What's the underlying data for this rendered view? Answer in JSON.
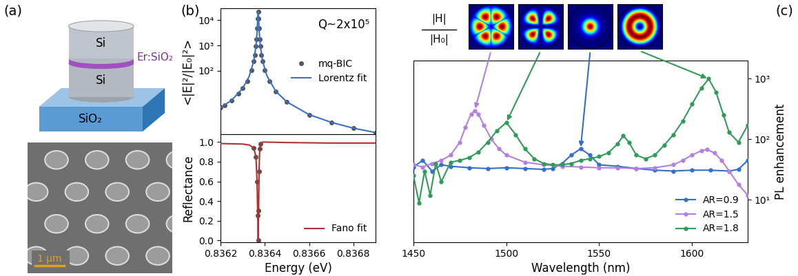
{
  "panel_labels": [
    "(a)",
    "(b)",
    "(c)"
  ],
  "schematic": {
    "top_layer": "Si",
    "interlayer": "Er:SiO₂",
    "bottom_layer": "Si",
    "substrate": "SiO₂"
  },
  "sem": {
    "scale_bar": "1 μm"
  },
  "chart_data": [
    {
      "type": "scatter",
      "ylabel": "<|E|²/|E₀|²>",
      "annotation": "Q~2x10⁵",
      "log": "y",
      "xlim": [
        0.8362,
        0.8369
      ],
      "ylim": [
        0.3,
        30000
      ],
      "xticks": [
        0.8362,
        0.8364,
        0.8366,
        0.8368
      ],
      "yticks": [
        {
          "value": 100,
          "label": "10²"
        },
        {
          "value": 1000,
          "label": "10³"
        },
        {
          "value": 10000,
          "label": "10⁴"
        }
      ],
      "tick_labels": "y",
      "legend": "center right",
      "series": [
        {
          "name": "mq-BIC",
          "type": "scatter",
          "marker": "circle",
          "color": "#555555",
          "x": [
            0.8362,
            0.83622,
            0.83625,
            0.83628,
            0.8363,
            0.83632,
            0.83634,
            0.83635,
            0.836355,
            0.83636,
            0.836363,
            0.836366,
            0.836368,
            0.83637,
            0.836372,
            0.836374,
            0.836377,
            0.83638,
            0.836385,
            0.83639,
            0.8364,
            0.83642,
            0.83645,
            0.8365,
            0.8366,
            0.8367,
            0.8368,
            0.8369
          ],
          "values": [
            3.4,
            4.3,
            6.7,
            12,
            19.8,
            39,
            107,
            242,
            422,
            925,
            1820,
            4750,
            11500,
            22000,
            11500,
            4750,
            1820,
            925,
            422,
            242,
            107,
            39,
            15,
            5.7,
            1.8,
            0.89,
            0.52,
            0.35
          ]
        },
        {
          "name": "Lorentz fit",
          "type": "line",
          "color": "#3a6fc4",
          "x": [
            0.8362,
            0.83625,
            0.8363,
            0.83633,
            0.83635,
            0.83636,
            0.836365,
            0.836368,
            0.83637,
            0.836372,
            0.836375,
            0.83638,
            0.83639,
            0.83641,
            0.83645,
            0.8365,
            0.8366,
            0.8367,
            0.8368,
            0.8369
          ],
          "values": [
            3.4,
            6.7,
            19.8,
            61,
            242,
            925,
            3300,
            11500,
            22000,
            11500,
            3300,
            925,
            242,
            61,
            15,
            5.7,
            1.8,
            0.89,
            0.52,
            0.35
          ]
        }
      ]
    },
    {
      "type": "line",
      "xlabel": "Energy (eV)",
      "ylabel": "Reflectance",
      "xlim": [
        0.8362,
        0.8369
      ],
      "ylim": [
        -0.02,
        1.08
      ],
      "xticks": [
        0.8362,
        0.8364,
        0.8366,
        0.8368
      ],
      "yticks": [
        0.0,
        0.2,
        0.4,
        0.6,
        0.8,
        1.0
      ],
      "legend": "lower right",
      "series": [
        {
          "type": "scatter",
          "marker": "circle",
          "color": "#555555",
          "x": [
            0.83635,
            0.83636,
            0.836365,
            0.836368,
            0.83637,
            0.836372,
            0.836374,
            0.836377,
            0.83638
          ],
          "values": [
            0.94,
            0.85,
            0.6,
            0.25,
            0.0,
            0.3,
            0.7,
            0.93,
            0.98
          ]
        },
        {
          "name": "Fano fit",
          "type": "line",
          "color": "#b03030",
          "x": [
            0.8362,
            0.8363,
            0.83633,
            0.83635,
            0.83636,
            0.836365,
            0.836368,
            0.83637,
            0.836372,
            0.836374,
            0.836377,
            0.83638,
            0.83639,
            0.8364,
            0.8365,
            0.8367,
            0.8369
          ],
          "values": [
            0.985,
            0.98,
            0.97,
            0.94,
            0.85,
            0.6,
            0.25,
            0.0,
            0.3,
            0.7,
            0.93,
            0.98,
            1.0,
            1.0,
            0.995,
            0.99,
            0.99
          ]
        }
      ]
    },
    {
      "type": "line",
      "xlabel": "Wavelength (nm)",
      "ylabel": "PL enhancement",
      "log": "y",
      "xlim": [
        1450,
        1630
      ],
      "ylim": [
        2,
        2000
      ],
      "xticks": [
        1450,
        1500,
        1550,
        1600
      ],
      "yticks": [
        {
          "value": 10,
          "label": "10¹"
        },
        {
          "value": 100,
          "label": "10²"
        },
        {
          "value": 1000,
          "label": "10³"
        }
      ],
      "legend": "lower right",
      "marker": "circle",
      "field_label": {
        "numerator": "|H|",
        "denominator": "|H₀|"
      },
      "mode_profiles": [
        {
          "series": "AR=1.5",
          "wavelength": 1483
        },
        {
          "series": "AR=1.8",
          "wavelength": 1500
        },
        {
          "series": "AR=0.9",
          "wavelength": 1540
        },
        {
          "series": "AR=1.8",
          "wavelength": 1609
        }
      ],
      "series": [
        {
          "name": "AR=0.9",
          "color": "#2f6fcf",
          "x": [
            1450,
            1455,
            1460,
            1465,
            1470,
            1480,
            1490,
            1500,
            1510,
            1520,
            1525,
            1530,
            1535,
            1540,
            1545,
            1550,
            1560,
            1570,
            1580,
            1590,
            1600,
            1610,
            1620,
            1625,
            1630
          ],
          "values": [
            35,
            45,
            30,
            38,
            36,
            34,
            33,
            34,
            33,
            32,
            33,
            40,
            55,
            70,
            55,
            38,
            36,
            33,
            31,
            30,
            31,
            31,
            30,
            32,
            45
          ]
        },
        {
          "name": "AR=1.5",
          "color": "#b47fe0",
          "x": [
            1450,
            1455,
            1460,
            1465,
            1470,
            1475,
            1478,
            1481,
            1483,
            1485,
            1488,
            1492,
            1496,
            1500,
            1510,
            1520,
            1530,
            1540,
            1550,
            1560,
            1570,
            1580,
            1590,
            1595,
            1600,
            1605,
            1608,
            1612,
            1616,
            1620,
            1625,
            1630
          ],
          "values": [
            38,
            35,
            40,
            45,
            55,
            90,
            160,
            260,
            300,
            260,
            170,
            100,
            70,
            55,
            42,
            38,
            36,
            35,
            34,
            34,
            33,
            34,
            38,
            45,
            55,
            65,
            68,
            60,
            45,
            30,
            18,
            12
          ]
        },
        {
          "name": "AR=1.8",
          "color": "#2e9b57",
          "x": [
            1450,
            1453,
            1456,
            1459,
            1462,
            1465,
            1470,
            1475,
            1480,
            1485,
            1490,
            1495,
            1500,
            1505,
            1510,
            1515,
            1520,
            1525,
            1530,
            1535,
            1540,
            1545,
            1550,
            1555,
            1560,
            1563,
            1566,
            1570,
            1575,
            1580,
            1585,
            1590,
            1595,
            1600,
            1605,
            1609,
            1613,
            1617,
            1620,
            1625,
            1630
          ],
          "values": [
            25,
            9,
            30,
            12,
            40,
            20,
            42,
            45,
            50,
            62,
            90,
            140,
            190,
            120,
            70,
            48,
            40,
            38,
            38,
            40,
            45,
            48,
            52,
            60,
            85,
            115,
            90,
            55,
            48,
            55,
            80,
            120,
            200,
            380,
            700,
            1000,
            600,
            250,
            130,
            90,
            170
          ]
        }
      ]
    }
  ]
}
